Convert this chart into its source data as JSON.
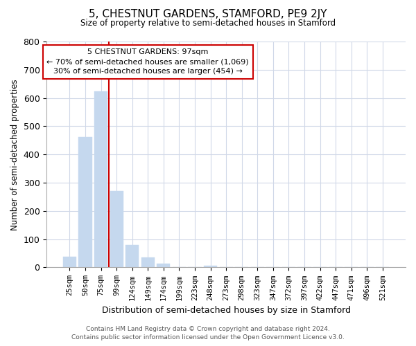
{
  "title": "5, CHESTNUT GARDENS, STAMFORD, PE9 2JY",
  "subtitle": "Size of property relative to semi-detached houses in Stamford",
  "xlabel": "Distribution of semi-detached houses by size in Stamford",
  "ylabel": "Number of semi-detached properties",
  "bar_labels": [
    "25sqm",
    "50sqm",
    "75sqm",
    "99sqm",
    "124sqm",
    "149sqm",
    "174sqm",
    "199sqm",
    "223sqm",
    "248sqm",
    "273sqm",
    "298sqm",
    "323sqm",
    "347sqm",
    "372sqm",
    "397sqm",
    "422sqm",
    "447sqm",
    "471sqm",
    "496sqm",
    "521sqm"
  ],
  "bar_values": [
    38,
    463,
    623,
    270,
    80,
    36,
    14,
    0,
    0,
    5,
    0,
    0,
    0,
    0,
    0,
    0,
    0,
    0,
    0,
    0,
    0
  ],
  "property_line_bar_idx": 2,
  "annotation_title": "5 CHESTNUT GARDENS: 97sqm",
  "annotation_smaller": "← 70% of semi-detached houses are smaller (1,069)",
  "annotation_larger": "30% of semi-detached houses are larger (454) →",
  "bar_color": "#c5d8ee",
  "property_line_color": "#cc0000",
  "annotation_box_color": "#cc0000",
  "ylim": [
    0,
    800
  ],
  "yticks": [
    0,
    100,
    200,
    300,
    400,
    500,
    600,
    700,
    800
  ],
  "grid_color": "#d0d8e8",
  "footer_line1": "Contains HM Land Registry data © Crown copyright and database right 2024.",
  "footer_line2": "Contains public sector information licensed under the Open Government Licence v3.0."
}
